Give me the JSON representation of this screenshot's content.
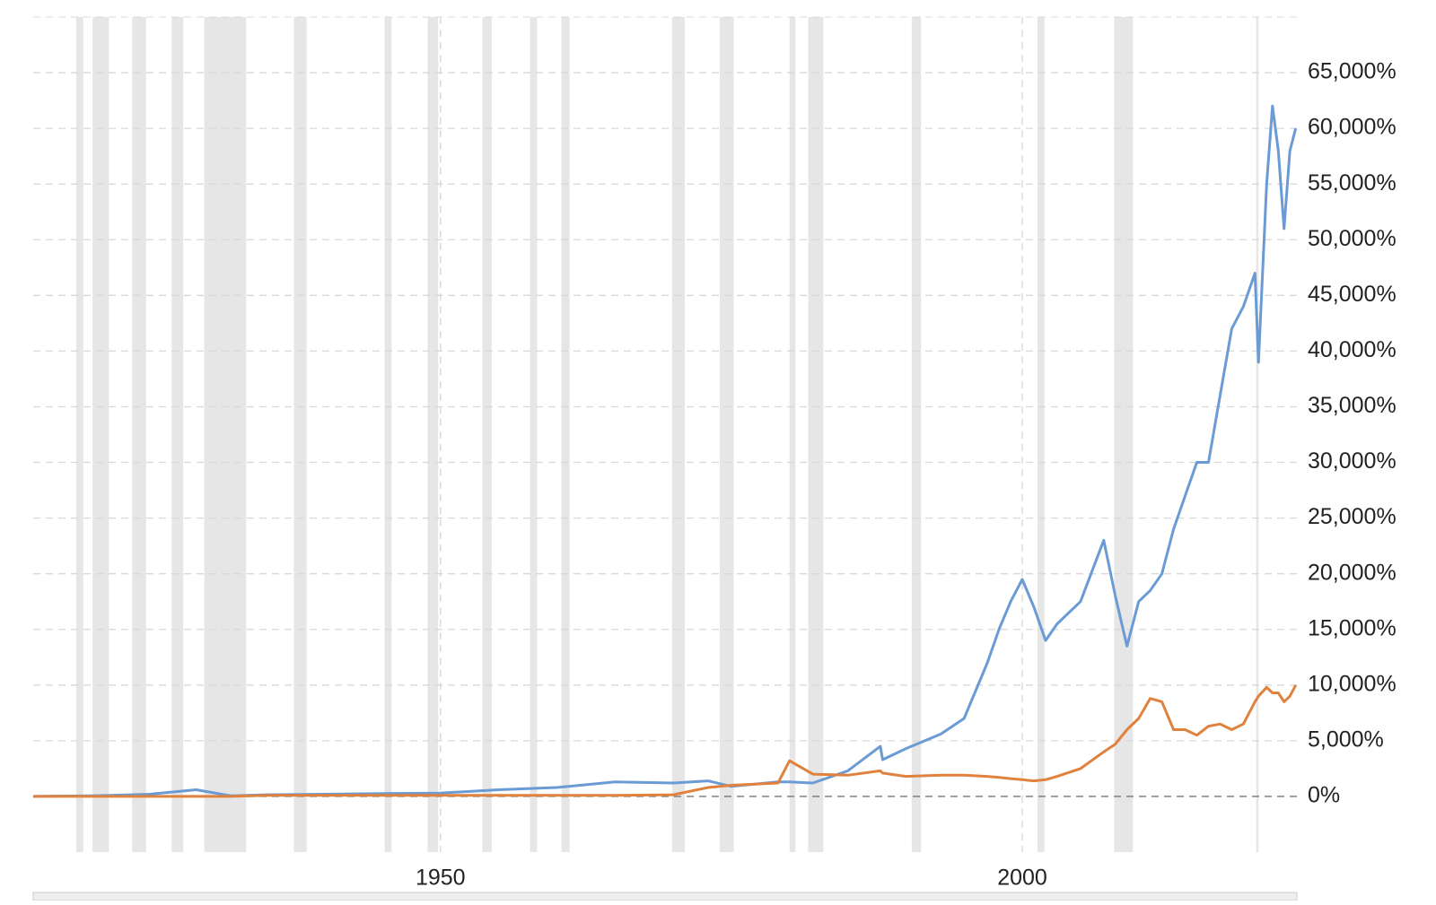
{
  "chart_data": {
    "type": "line",
    "x": [
      1915,
      1920,
      1925,
      1929,
      1932,
      1935,
      1940,
      1945,
      1950,
      1955,
      1960,
      1965,
      1970,
      1973,
      1975,
      1979,
      1980,
      1982,
      1985,
      1987.8,
      1988,
      1990,
      1993,
      1995,
      1997,
      1998,
      1999,
      2000,
      2001,
      2002,
      2003,
      2005,
      2007,
      2008,
      2009,
      2010,
      2011,
      2012,
      2013,
      2014,
      2015,
      2016,
      2017,
      2018,
      2019,
      2020,
      2020.3,
      2021,
      2021.5,
      2022,
      2022.5,
      2023,
      2023.5
    ],
    "series": [
      {
        "color": "#6a9bd5",
        "values": [
          0,
          50,
          200,
          600,
          50,
          150,
          200,
          250,
          300,
          600,
          800,
          1300,
          1200,
          1400,
          900,
          1300,
          1300,
          1200,
          2300,
          4500,
          3300,
          4300,
          5600,
          7000,
          12000,
          15000,
          17500,
          19500,
          17000,
          14000,
          15500,
          17500,
          23000,
          18000,
          13500,
          17500,
          18500,
          20000,
          24000,
          27000,
          30000,
          30000,
          36000,
          42000,
          44000,
          47000,
          39000,
          55000,
          62000,
          58000,
          51000,
          58000,
          60000
        ]
      },
      {
        "color": "#e0823d",
        "values": [
          0,
          0,
          0,
          0,
          0,
          100,
          100,
          100,
          100,
          100,
          100,
          100,
          150,
          800,
          1000,
          1200,
          3200,
          2000,
          1900,
          2300,
          2100,
          1800,
          1900,
          1900,
          1800,
          1700,
          1600,
          1500,
          1400,
          1500,
          1800,
          2500,
          4000,
          4700,
          6000,
          7000,
          8800,
          8500,
          6000,
          6000,
          5500,
          6300,
          6500,
          6000,
          6500,
          8500,
          9000,
          9800,
          9300,
          9300,
          8500,
          9000,
          10000
        ]
      }
    ],
    "recessions": [
      [
        1918.7,
        1919.3
      ],
      [
        1920.1,
        1921.5
      ],
      [
        1923.5,
        1924.7
      ],
      [
        1926.9,
        1927.9
      ],
      [
        1929.7,
        1933.3
      ],
      [
        1937.4,
        1938.5
      ],
      [
        1945.2,
        1945.8
      ],
      [
        1948.9,
        1949.8
      ],
      [
        1953.6,
        1954.4
      ],
      [
        1957.7,
        1958.3
      ],
      [
        1960.4,
        1961.1
      ],
      [
        1969.9,
        1971.0
      ],
      [
        1974.0,
        1975.2
      ],
      [
        1980.0,
        1980.5
      ],
      [
        1981.6,
        1982.9
      ],
      [
        1990.5,
        1991.3
      ],
      [
        2001.3,
        2001.9
      ],
      [
        2007.9,
        2009.5
      ],
      [
        2020.1,
        2020.3
      ]
    ],
    "recession_color": "#e6e6e6",
    "xlim": [
      1915,
      2023.6
    ],
    "xticks": [
      1950,
      2000
    ],
    "ylim": [
      -5000,
      70000
    ],
    "yticks": [
      {
        "value": 0,
        "label": "0%"
      },
      {
        "value": 5000,
        "label": "5,000%"
      },
      {
        "value": 10000,
        "label": "10,000%"
      },
      {
        "value": 15000,
        "label": "15,000%"
      },
      {
        "value": 20000,
        "label": "20,000%"
      },
      {
        "value": 25000,
        "label": "25,000%"
      },
      {
        "value": 30000,
        "label": "30,000%"
      },
      {
        "value": 35000,
        "label": "35,000%"
      },
      {
        "value": 40000,
        "label": "40,000%"
      },
      {
        "value": 45000,
        "label": "45,000%"
      },
      {
        "value": 50000,
        "label": "50,000%"
      },
      {
        "value": 55000,
        "label": "55,000%"
      },
      {
        "value": 60000,
        "label": "60,000%"
      },
      {
        "value": 65000,
        "label": "65,000%"
      }
    ],
    "grid": true
  }
}
